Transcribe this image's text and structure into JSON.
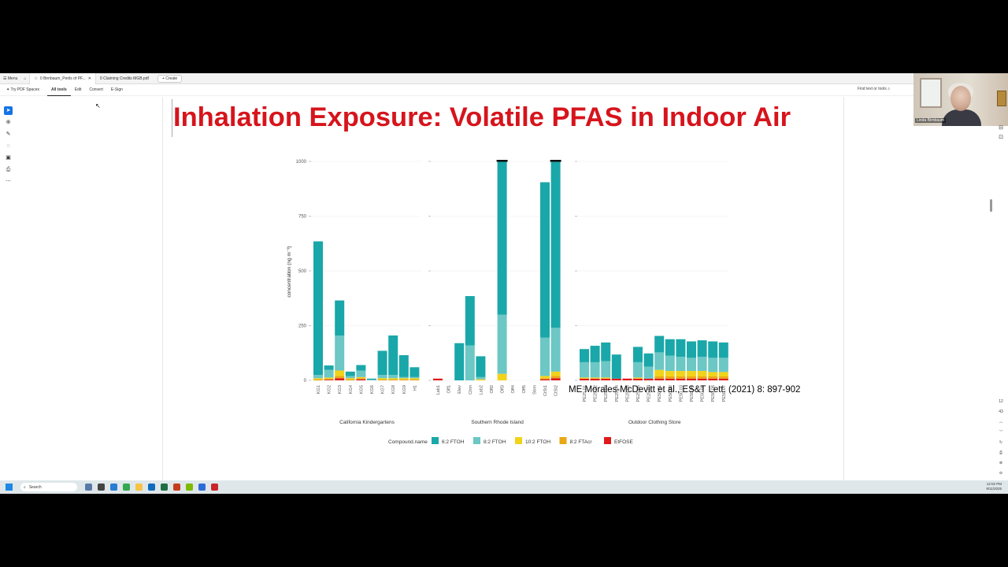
{
  "tabbar": {
    "menu_label": "Menu",
    "tabs": [
      {
        "label": "0 Birnbaum_Perils of PF..."
      },
      {
        "label": "0 Claiming Credits MGB.pdf"
      }
    ],
    "create_label": "+ Create"
  },
  "toolbar": {
    "spaces_label": "Try PDF Spaces",
    "menus": [
      "All tools",
      "Edit",
      "Convert",
      "E-Sign"
    ],
    "find_label": "Find text or tools"
  },
  "slide": {
    "title": "Inhalation Exposure: Volatile PFAS in Indoor Air",
    "citation": "ME Morales-McDevitt et al., ES&T Lett. (2021) 8: 897-902"
  },
  "webcam": {
    "name": "Linda Birnbaum"
  },
  "pager": {
    "page": "12",
    "total": "43"
  },
  "taskbar": {
    "search_label": "Search",
    "time": "12:02 PM",
    "date": "9/11/2025"
  },
  "colors": {
    "title_red": "#d6141c",
    "fto62": "#1aa7a9",
    "fto82": "#6cc7c5",
    "fto102": "#f2d31b",
    "ftacr82": "#e8a917",
    "etfose": "#e01a1a"
  },
  "chart_data": {
    "type": "bar",
    "stacked": true,
    "ylabel": "concentration (ng m⁻³)",
    "yticks": [
      0,
      250,
      500,
      750,
      1000
    ],
    "ylim": [
      0,
      1000
    ],
    "legend_title": "Compound.name",
    "legend": [
      {
        "name": "6:2 FTOH",
        "color": "#1aa7a9"
      },
      {
        "name": "8:2 FTOH",
        "color": "#6cc7c5"
      },
      {
        "name": "10:2 FTOH",
        "color": "#f2d31b"
      },
      {
        "name": "8:2 FTAcr",
        "color": "#e8a917"
      },
      {
        "name": "EtFOSE",
        "color": "#e01a1a"
      }
    ],
    "panels": [
      {
        "title": "California Kindergartens",
        "bars": [
          {
            "label": "KG1",
            "values": [
              610,
              15,
              5,
              5,
              0
            ]
          },
          {
            "label": "KG2",
            "values": [
              20,
              35,
              5,
              5,
              3
            ]
          },
          {
            "label": "KG3",
            "values": [
              160,
              160,
              25,
              10,
              10
            ]
          },
          {
            "label": "KG4",
            "values": [
              20,
              10,
              5,
              5,
              0
            ]
          },
          {
            "label": "KG5",
            "values": [
              25,
              30,
              5,
              5,
              5
            ]
          },
          {
            "label": "KG6",
            "values": [
              5,
              3,
              0,
              0,
              0
            ]
          },
          {
            "label": "KG7",
            "values": [
              110,
              15,
              5,
              5,
              0
            ]
          },
          {
            "label": "KG8",
            "values": [
              180,
              15,
              5,
              5,
              0
            ]
          },
          {
            "label": "KG9",
            "values": [
              100,
              5,
              5,
              5,
              0
            ]
          },
          {
            "label": "H1",
            "values": [
              45,
              5,
              5,
              5,
              0
            ]
          }
        ]
      },
      {
        "title": "Southern Rhode Island",
        "bars": [
          {
            "label": "Lab1",
            "values": [
              0,
              0,
              0,
              0,
              8
            ]
          },
          {
            "label": "Off1",
            "values": [
              0,
              0,
              0,
              0,
              0
            ]
          },
          {
            "label": "Elev",
            "values": [
              170,
              0,
              0,
              0,
              0
            ]
          },
          {
            "label": "Clrm",
            "values": [
              225,
              160,
              0,
              0,
              0
            ]
          },
          {
            "label": "Lab2",
            "values": [
              95,
              10,
              5,
              0,
              0
            ]
          },
          {
            "label": "Off2",
            "values": [
              0,
              0,
              0,
              0,
              0
            ]
          },
          {
            "label": "Off3",
            "values": [
              770,
              270,
              30,
              0,
              0
            ]
          },
          {
            "label": "Off4",
            "values": [
              0,
              0,
              0,
              0,
              0
            ]
          },
          {
            "label": "Off5",
            "values": [
              0,
              0,
              0,
              0,
              0
            ]
          },
          {
            "label": "Strm",
            "values": [
              0,
              0,
              0,
              0,
              0
            ]
          },
          {
            "label": "CtSt1",
            "values": [
              710,
              175,
              10,
              5,
              5
            ]
          },
          {
            "label": "CtSt2",
            "values": [
              850,
              200,
              20,
              10,
              10
            ]
          }
        ]
      },
      {
        "title": "Outdoor Clothing Store",
        "bars": [
          {
            "label": "PE25.01",
            "values": [
              60,
              70,
              5,
              0,
              8
            ]
          },
          {
            "label": "PE25.02",
            "values": [
              75,
              70,
              5,
              0,
              8
            ]
          },
          {
            "label": "PE25.03",
            "values": [
              85,
              75,
              5,
              0,
              8
            ]
          },
          {
            "label": "PE25.04",
            "values": [
              110,
              0,
              0,
              0,
              8
            ]
          },
          {
            "label": "PE25.05",
            "values": [
              0,
              0,
              0,
              0,
              8
            ]
          },
          {
            "label": "PE25.06",
            "values": [
              70,
              70,
              5,
              0,
              8
            ]
          },
          {
            "label": "PE25.07",
            "values": [
              60,
              55,
              0,
              0,
              8
            ]
          },
          {
            "label": "PE50.01",
            "values": [
              75,
              80,
              30,
              10,
              8
            ]
          },
          {
            "label": "PE50.02",
            "values": [
              75,
              70,
              25,
              10,
              8
            ]
          },
          {
            "label": "PE50.03",
            "values": [
              80,
              65,
              25,
              10,
              8
            ]
          },
          {
            "label": "PE50.04",
            "values": [
              75,
              60,
              25,
              10,
              8
            ]
          },
          {
            "label": "PE50.05",
            "values": [
              75,
              65,
              25,
              10,
              8
            ]
          },
          {
            "label": "PE50.06",
            "values": [
              75,
              65,
              20,
              10,
              8
            ]
          },
          {
            "label": "PE50.07",
            "values": [
              70,
              65,
              20,
              10,
              8
            ]
          }
        ]
      }
    ]
  }
}
